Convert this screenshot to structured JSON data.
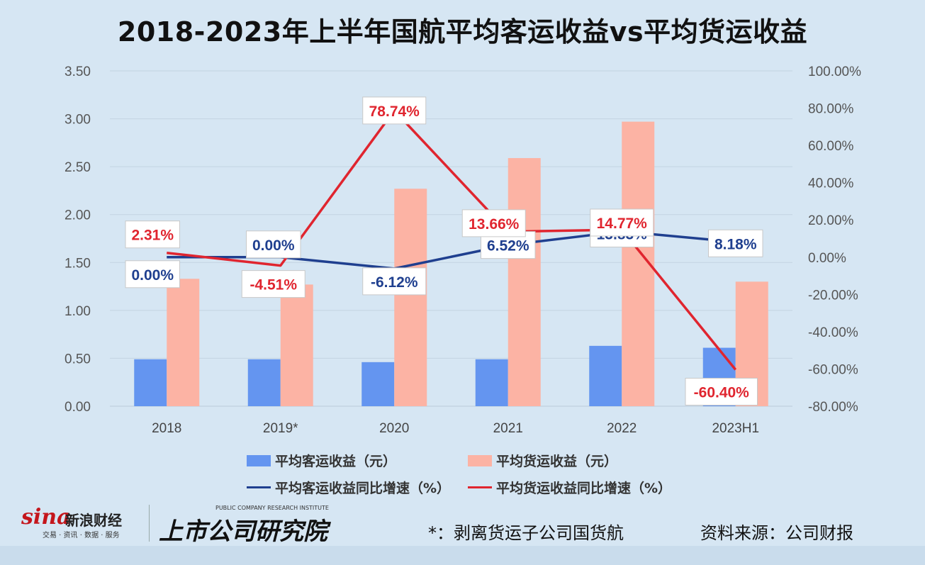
{
  "title": "2018-2023年上半年国航平均客运收益vs平均货运收益",
  "chart_data": {
    "type": "bar",
    "categories": [
      "2018",
      "2019*",
      "2020",
      "2021",
      "2022",
      "2023H1"
    ],
    "left_axis": {
      "ticks": [
        "0.00",
        "0.50",
        "1.00",
        "1.50",
        "2.00",
        "2.50",
        "3.00",
        "3.50"
      ],
      "ylim": [
        0,
        3.5
      ]
    },
    "right_axis": {
      "ticks": [
        "-80.00%",
        "-60.00%",
        "-40.00%",
        "-20.00%",
        "0.00%",
        "20.00%",
        "40.00%",
        "60.00%",
        "80.00%",
        "100.00%"
      ],
      "ylim": [
        -80,
        100
      ]
    },
    "bar_series": [
      {
        "name": "平均客运收益（元）",
        "color": "#6495f0",
        "values": [
          0.49,
          0.49,
          0.46,
          0.49,
          0.63,
          0.61
        ]
      },
      {
        "name": "平均货运收益（元）",
        "color": "#fcb3a4",
        "values": [
          1.33,
          1.27,
          2.27,
          2.59,
          2.97,
          1.3
        ]
      }
    ],
    "line_series": [
      {
        "name": "平均客运收益同比增速（%）",
        "color": "#1f3f8f",
        "values": [
          0.0,
          0.0,
          -6.12,
          6.52,
          13.83,
          8.18
        ],
        "labels": [
          "0.00%",
          "0.00%",
          "-6.12%",
          "6.52%",
          "13.83%",
          "8.18%"
        ]
      },
      {
        "name": "平均货运收益同比增速（%）",
        "color": "#e0252f",
        "values": [
          2.31,
          -4.51,
          78.74,
          13.66,
          14.77,
          -60.4
        ],
        "labels": [
          "2.31%",
          "-4.51%",
          "78.74%",
          "13.66%",
          "14.77%",
          "-60.40%"
        ]
      }
    ],
    "grid": true,
    "legend_position": "bottom"
  },
  "footnote": "*：剥离货运子公司国货航",
  "source": "资料来源：公司财报",
  "logos": {
    "sina_word": "sina",
    "sina_cn": "新浪财经",
    "sina_sub": "交易 · 资讯 · 数据 · 服务",
    "institute_en": "PUBLIC COMPANY RESEARCH INSTITUTE",
    "institute_cn": "上市公司研究院"
  }
}
